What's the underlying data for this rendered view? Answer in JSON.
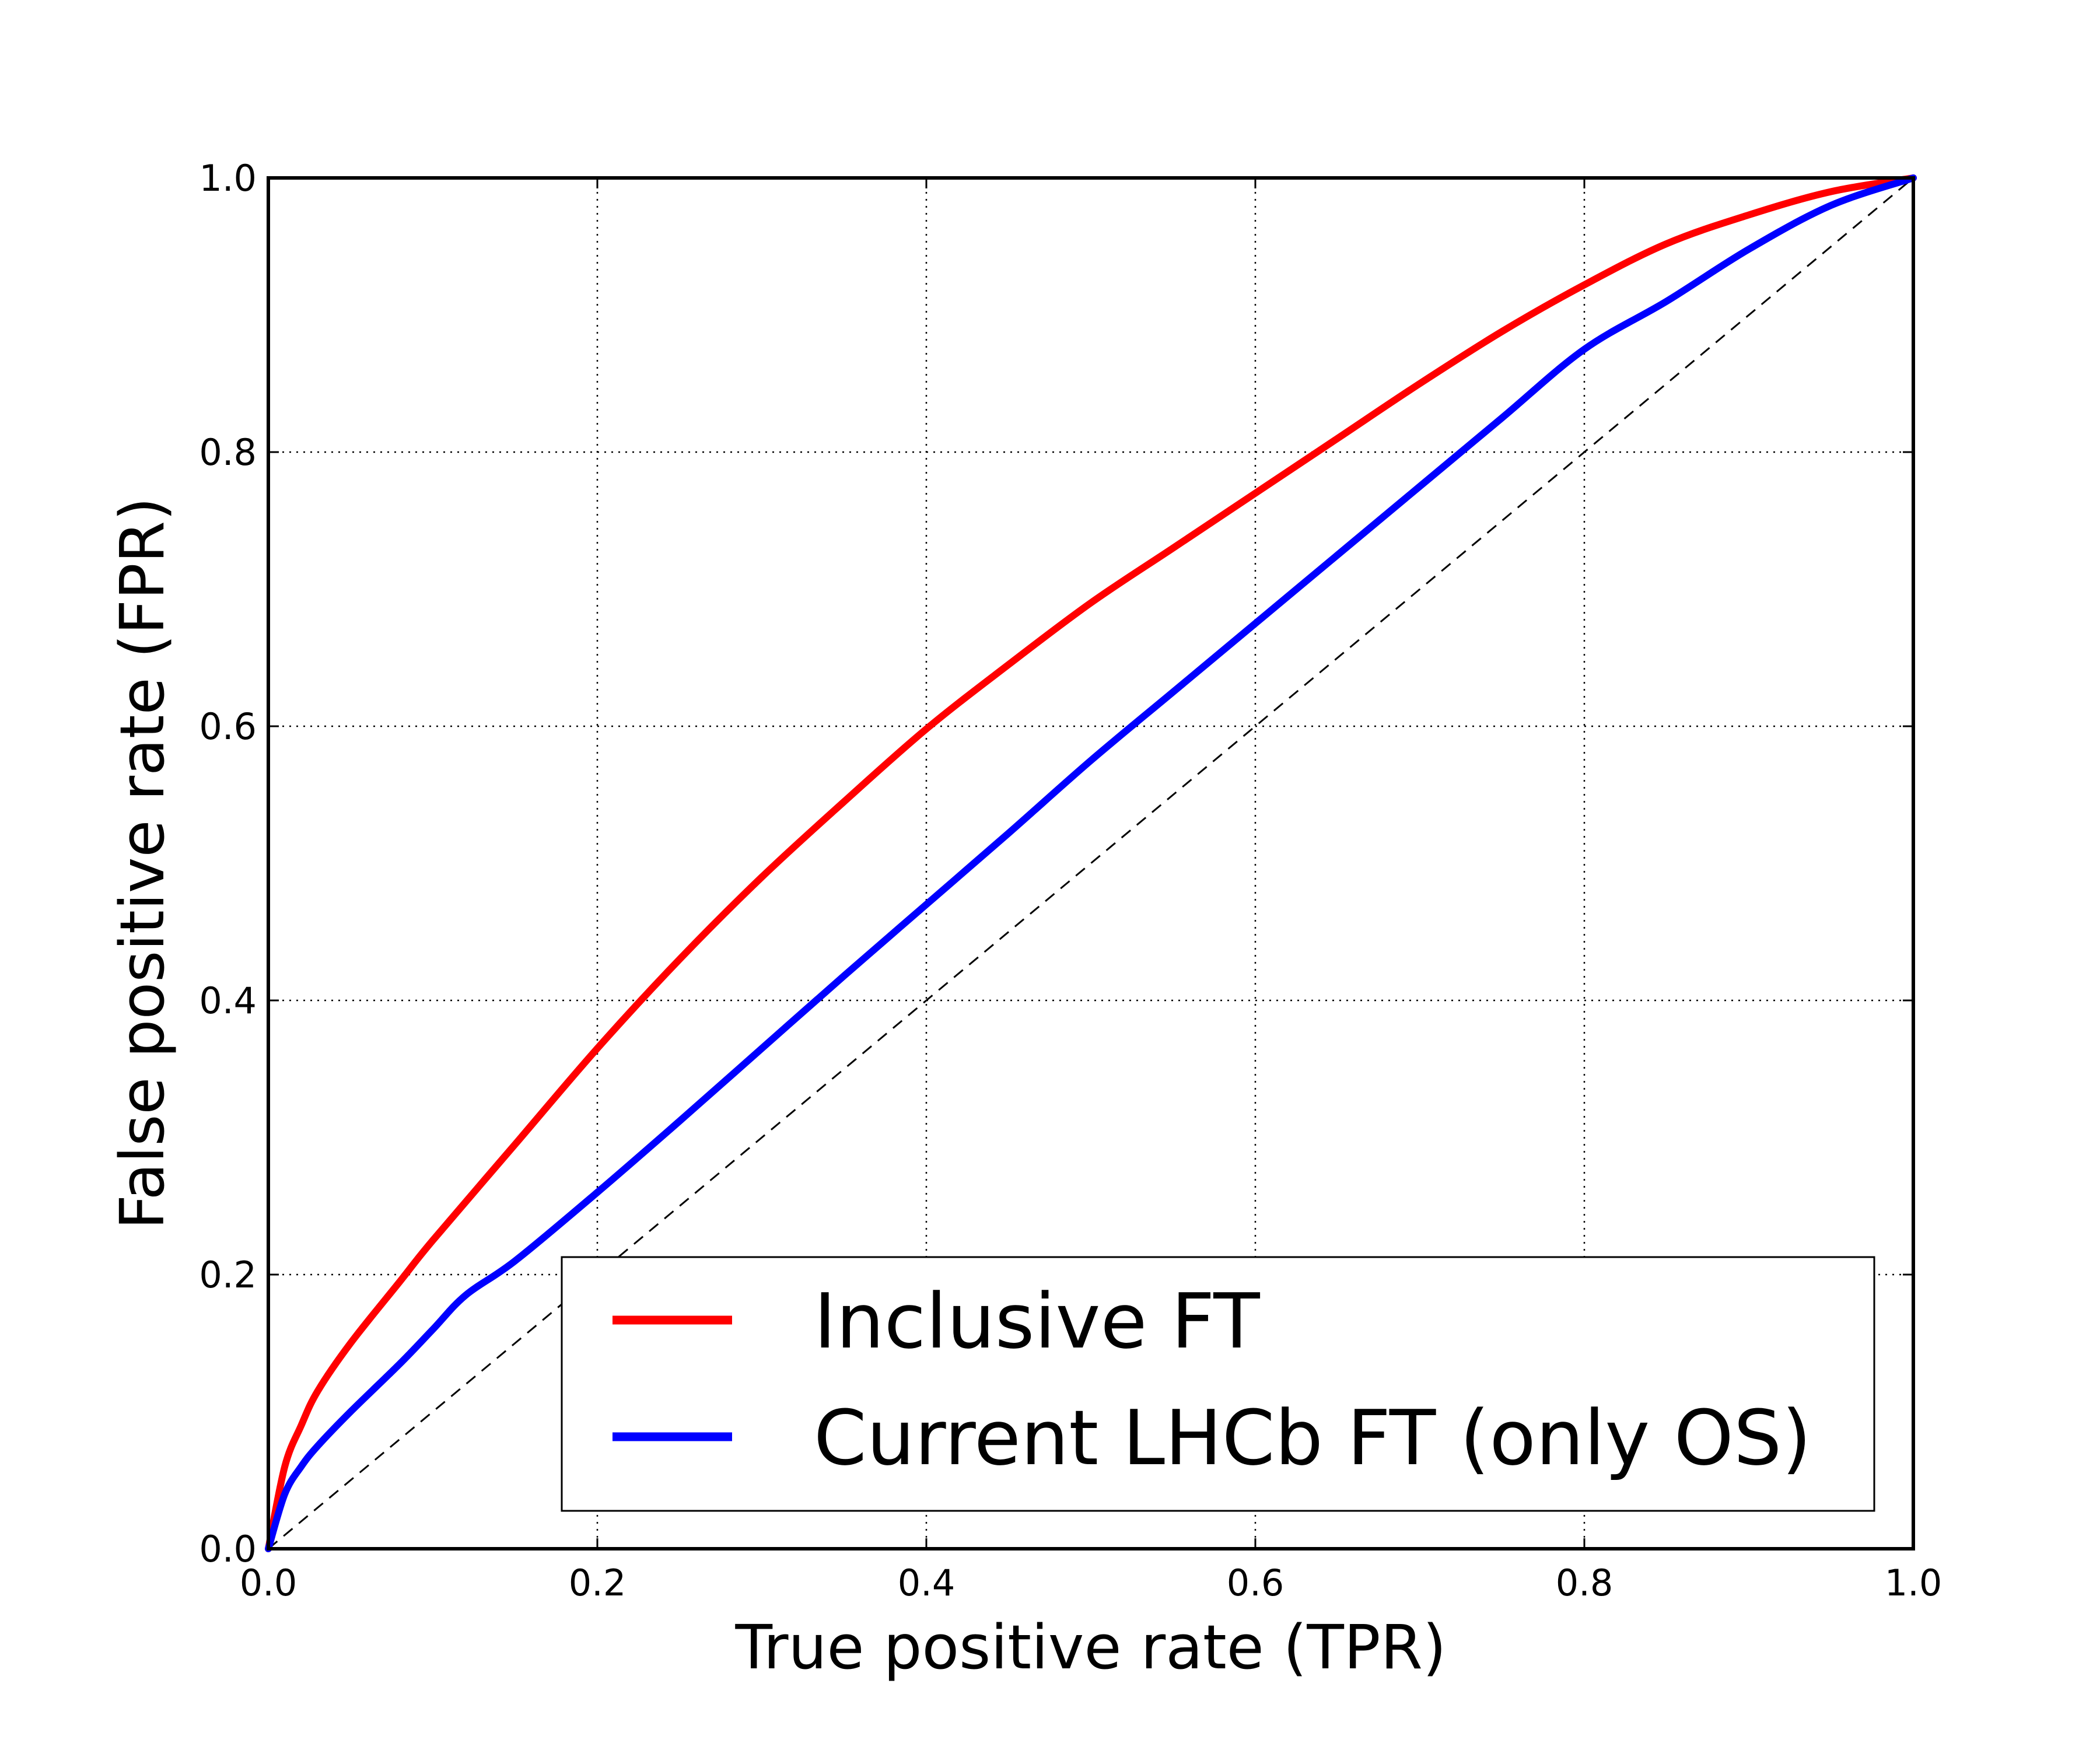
{
  "chart_data": {
    "type": "line",
    "title": "",
    "xlabel": "True positive rate (TPR)",
    "ylabel": "False positive rate (FPR)",
    "xlim": [
      0.0,
      1.0
    ],
    "ylim": [
      0.0,
      1.0
    ],
    "grid": true,
    "legend_position": "lower-right",
    "x_ticks": [
      "0.0",
      "0.2",
      "0.4",
      "0.6",
      "0.8",
      "1.0"
    ],
    "y_ticks": [
      "0.0",
      "0.2",
      "0.4",
      "0.6",
      "0.8",
      "1.0"
    ],
    "reference_line": {
      "name": "random",
      "style": "dashed",
      "color": "#000000",
      "x": [
        0,
        1
      ],
      "y": [
        0,
        1
      ]
    },
    "series": [
      {
        "name": "Inclusive FT",
        "color": "#ff0000",
        "x": [
          0,
          0.01,
          0.02,
          0.03,
          0.05,
          0.08,
          0.1,
          0.15,
          0.2,
          0.25,
          0.3,
          0.35,
          0.4,
          0.45,
          0.5,
          0.55,
          0.6,
          0.65,
          0.7,
          0.75,
          0.8,
          0.85,
          0.9,
          0.95,
          1.0
        ],
        "y": [
          0,
          0.06,
          0.09,
          0.115,
          0.15,
          0.195,
          0.225,
          0.295,
          0.365,
          0.43,
          0.49,
          0.545,
          0.598,
          0.645,
          0.69,
          0.73,
          0.77,
          0.81,
          0.85,
          0.888,
          0.922,
          0.952,
          0.973,
          0.99,
          1.0
        ]
      },
      {
        "name": "Current LHCb FT (only OS)",
        "color": "#0000ff",
        "x": [
          0,
          0.01,
          0.02,
          0.03,
          0.05,
          0.08,
          0.1,
          0.12,
          0.15,
          0.2,
          0.25,
          0.3,
          0.35,
          0.4,
          0.45,
          0.5,
          0.55,
          0.6,
          0.65,
          0.7,
          0.75,
          0.8,
          0.85,
          0.9,
          0.95,
          1.0
        ],
        "y": [
          0,
          0.04,
          0.06,
          0.075,
          0.1,
          0.135,
          0.16,
          0.185,
          0.21,
          0.26,
          0.312,
          0.365,
          0.418,
          0.47,
          0.522,
          0.575,
          0.625,
          0.675,
          0.725,
          0.775,
          0.825,
          0.875,
          0.91,
          0.948,
          0.98,
          1.0
        ]
      }
    ]
  }
}
